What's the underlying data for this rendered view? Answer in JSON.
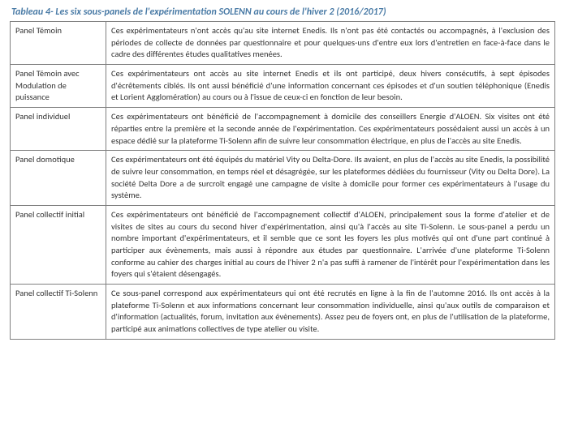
{
  "caption": "Tableau 4- Les six sous-panels de l'expérimentation SOLENN au cours de l'hiver 2 (2016/2017)",
  "rows": [
    {
      "label": "Panel Témoin",
      "desc": "Ces expérimentateurs n'ont accès qu'au site internet Enedis. Ils n'ont pas été contactés ou accompagnés, à l'exclusion des périodes de collecte de données par questionnaire et pour quelques-uns d'entre eux lors d'entretien en face-à-face dans le cadre des différentes études qualitatives menées."
    },
    {
      "label": "Panel Témoin avec Modulation de puissance",
      "desc": "Ces expérimentateurs ont accès au site internet Enedis et ils ont participé, deux hivers consécutifs, à sept épisodes d'écrêtements ciblés. Ils ont aussi bénéficié d'une information concernant ces épisodes et d'un soutien téléphonique (Enedis et Lorient Agglomération) au cours ou à l'issue de ceux-ci en fonction de leur besoin."
    },
    {
      "label": "Panel individuel",
      "desc": "Ces expérimentateurs ont bénéficié de l'accompagnement à domicile des conseillers Energie d'ALOEN. Six visites ont été réparties entre la première et la seconde année de l'expérimentation. Ces expérimentateurs possédaient aussi un accès à un espace dédié sur la plateforme Ti-Solenn afin de suivre leur consommation électrique, en plus de l'accès au site Enedis."
    },
    {
      "label": "Panel domotique",
      "desc": "Ces expérimentateurs ont été équipés du matériel Vity ou Delta-Dore. Ils avaient, en plus de l'accès au site Enedis, la possibilité de suivre leur consommation, en temps réel et désagrégée, sur les plateformes dédiées du fournisseur (Vity ou Delta Dore). La société Delta Dore a de surcroît engagé une campagne de visite à domicile pour former ces expérimentateurs à l'usage du système."
    },
    {
      "label": "Panel collectif initial",
      "desc": "Ces expérimentateurs ont bénéficié de l'accompagnement collectif d'ALOEN, principalement sous la forme d'atelier et de visites de sites au cours du second hiver d'expérimentation, ainsi qu'à l'accès au site Ti-Solenn. Le sous-panel a perdu un nombre important d'expérimentateurs, et il semble que ce sont les foyers les plus motivés qui ont d'une part continué à participer aux évènements, mais aussi à répondre aux études par questionnaire. L'arrivée d'une plateforme Ti-Solenn conforme au cahier des charges initial au cours de l'hiver 2 n'a pas suffi à ramener de l'intérêt pour l'expérimentation dans les foyers qui s'étaient désengagés."
    },
    {
      "label": "Panel collectif Ti-Solenn",
      "desc": "Ce sous-panel correspond aux expérimentateurs qui ont été recrutés en ligne à la fin de l'automne 2016. Ils ont accès à la plateforme Ti-Solenn et aux informations concernant leur consommation individuelle, ainsi qu'aux outils de comparaison et d'information (actualités, forum, invitation aux évènements). Assez peu de foyers ont, en plus de l'utilisation de la plateforme, participé aux animations collectives de type atelier ou visite."
    }
  ]
}
